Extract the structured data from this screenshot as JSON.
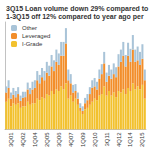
{
  "chart_data": {
    "type": "bar",
    "title": "3Q15 Loan volume down 29% compared to",
    "subtitle": "1-3Q15 off 12% compared to year ago per",
    "categories": [
      null,
      null,
      "3Q01",
      null,
      null,
      null,
      null,
      "4Q02",
      null,
      null,
      null,
      null,
      "1Q04",
      null,
      null,
      null,
      null,
      "2Q05",
      null,
      null,
      null,
      null,
      "3Q06",
      null,
      null,
      null,
      null,
      "4Q07",
      null,
      null,
      null,
      null,
      "1Q09",
      null,
      null,
      null,
      null,
      "2Q10",
      null,
      null,
      null,
      null,
      "3Q11",
      null,
      null,
      null,
      null,
      "4Q12",
      null,
      null,
      null,
      null,
      "1Q14",
      null,
      null,
      null,
      null,
      "2Q15",
      null
    ],
    "series": [
      {
        "name": "I-Grade",
        "color": "#f2c12e",
        "values": [
          180,
          200,
          150,
          170,
          160,
          170,
          140,
          150,
          150,
          180,
          160,
          170,
          170,
          200,
          190,
          210,
          200,
          230,
          220,
          250,
          230,
          260,
          250,
          280,
          260,
          300,
          200,
          220,
          180,
          200,
          160,
          120,
          100,
          130,
          140,
          160,
          180,
          200,
          190,
          220,
          230,
          280,
          220,
          250,
          220,
          240,
          210,
          250,
          240,
          260,
          230,
          270,
          250,
          300,
          260,
          280,
          260,
          290,
          200
        ]
      },
      {
        "name": "Leveraged",
        "color": "#f28e2b",
        "values": [
          60,
          70,
          50,
          55,
          50,
          60,
          45,
          55,
          60,
          80,
          70,
          90,
          100,
          120,
          110,
          130,
          120,
          140,
          130,
          160,
          150,
          180,
          170,
          200,
          220,
          260,
          120,
          80,
          60,
          50,
          40,
          20,
          20,
          40,
          50,
          70,
          90,
          80,
          70,
          110,
          130,
          150,
          90,
          100,
          110,
          120,
          130,
          160,
          200,
          220,
          180,
          210,
          190,
          220,
          180,
          170,
          160,
          170,
          120
        ]
      },
      {
        "name": "Other",
        "color": "#a9c4d8",
        "values": [
          40,
          50,
          40,
          45,
          40,
          45,
          35,
          40,
          35,
          45,
          40,
          50,
          50,
          60,
          55,
          60,
          60,
          70,
          65,
          75,
          70,
          80,
          75,
          90,
          90,
          100,
          70,
          60,
          50,
          45,
          40,
          30,
          30,
          35,
          40,
          45,
          50,
          55,
          50,
          60,
          65,
          75,
          60,
          70,
          60,
          70,
          65,
          80,
          80,
          90,
          75,
          85,
          85,
          95,
          80,
          90,
          85,
          95,
          70
        ]
      }
    ],
    "ylim": [
      0,
      700
    ],
    "stacked": true,
    "legend": "top-left",
    "grid": false,
    "tick_labels": "x"
  }
}
